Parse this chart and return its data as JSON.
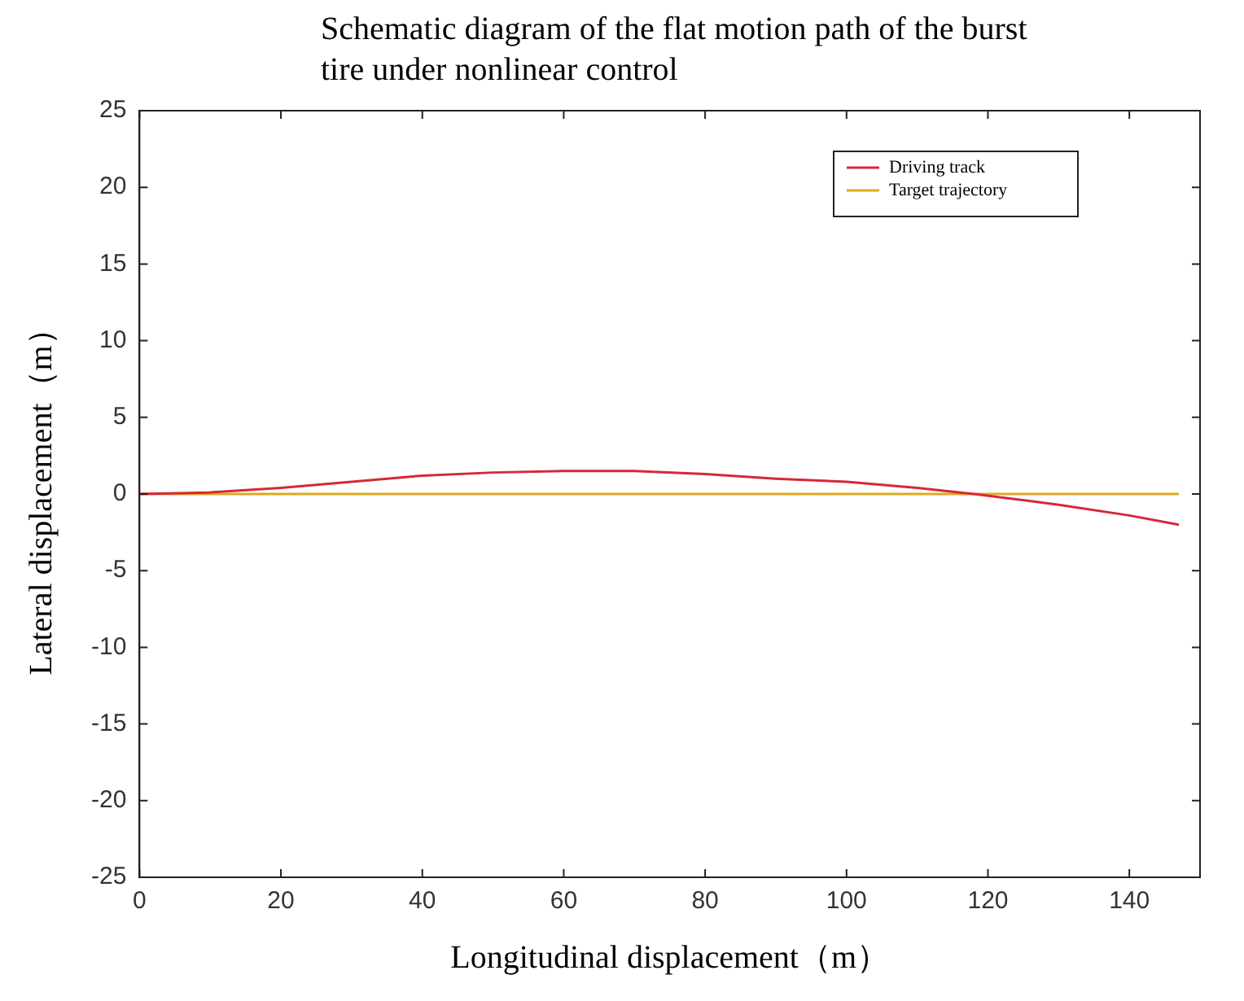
{
  "chart_data": {
    "type": "line",
    "title": "Schematic diagram of the flat motion path of the burst tire under nonlinear control",
    "xlabel": "Longitudinal displacement（m）",
    "ylabel": "Lateral displacement（m）",
    "series": [
      {
        "name": "Driving track",
        "color": "#d62838",
        "x": [
          0,
          10,
          20,
          30,
          40,
          50,
          60,
          70,
          80,
          90,
          100,
          110,
          118,
          130,
          140,
          147
        ],
        "values": [
          0,
          0.1,
          0.4,
          0.8,
          1.2,
          1.4,
          1.5,
          1.5,
          1.3,
          1,
          0.8,
          0.4,
          0,
          -0.7,
          -1.4,
          -2
        ]
      },
      {
        "name": "Target trajectory",
        "color": "#e0a820",
        "x": [
          0,
          147
        ],
        "values": [
          0,
          0
        ]
      }
    ],
    "xlim": [
      0,
      150
    ],
    "xticks": [
      0,
      20,
      40,
      60,
      80,
      100,
      120,
      140
    ],
    "ylim": [
      -25,
      25
    ],
    "yticks": [
      -25,
      -20,
      -15,
      -10,
      -5,
      0,
      5,
      10,
      15,
      20,
      25
    ],
    "grid": false,
    "legend": "top right",
    "line_style": "solid",
    "marker": "none"
  }
}
